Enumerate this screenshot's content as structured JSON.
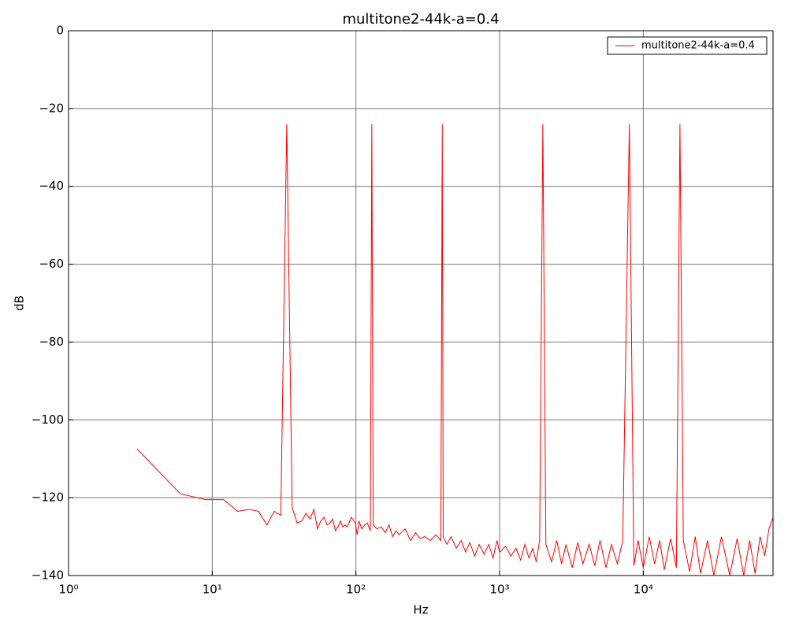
{
  "chart_data": {
    "type": "line",
    "title": "multitone2-44k-a=0.4",
    "x_label": "Hz",
    "y_label": "dB",
    "log_x": true,
    "grid": true,
    "legend": "upper right",
    "xlim": [
      1,
      80000
    ],
    "xticks": [
      {
        "value": 1,
        "label": "10⁰"
      },
      {
        "value": 10,
        "label": "10¹"
      },
      {
        "value": 100,
        "label": "10²"
      },
      {
        "value": 1000,
        "label": "10³"
      },
      {
        "value": 10000,
        "label": "10⁴"
      }
    ],
    "ylim": [
      -140,
      0
    ],
    "yticks": [
      {
        "value": -140,
        "label": "−140"
      },
      {
        "value": -120,
        "label": "−120"
      },
      {
        "value": -100,
        "label": "−100"
      },
      {
        "value": -80,
        "label": "−80"
      },
      {
        "value": -60,
        "label": "−60"
      },
      {
        "value": -40,
        "label": "−40"
      },
      {
        "value": -20,
        "label": "−20"
      },
      0
    ],
    "x": [
      3,
      6,
      9,
      12,
      15,
      18,
      21,
      24,
      27,
      30,
      33,
      36,
      39,
      42,
      45,
      48,
      51,
      54,
      57,
      60,
      63,
      66,
      69,
      72,
      75,
      78,
      81,
      84,
      87,
      93,
      99,
      102,
      105,
      110,
      115,
      120,
      126,
      129,
      132,
      140,
      150,
      160,
      170,
      180,
      190,
      200,
      220,
      240,
      260,
      280,
      300,
      330,
      360,
      390,
      399,
      405,
      430,
      460,
      500,
      540,
      580,
      620,
      670,
      720,
      780,
      840,
      900,
      960,
      1000,
      1100,
      1200,
      1300,
      1400,
      1500,
      1600,
      1700,
      1800,
      1900,
      2000,
      2100,
      2300,
      2500,
      2700,
      2900,
      3200,
      3500,
      3800,
      4200,
      4600,
      5000,
      5500,
      6000,
      6600,
      7200,
      8000,
      8600,
      9200,
      10000,
      11000,
      12000,
      13000,
      14000,
      15500,
      17000,
      18000,
      19000,
      21000,
      23000,
      25000,
      28000,
      31000,
      35000,
      40000,
      45000,
      50000,
      55000,
      60000,
      65000,
      70000,
      75000,
      80000
    ],
    "series": [
      {
        "name": "multitone2-44k-a=0.4",
        "color": "#ff0000",
        "values": [
          -107.5,
          -119,
          -120.5,
          -120.5,
          -123.5,
          -123,
          -123.5,
          -127,
          -123.5,
          -124.5,
          -24,
          -122.5,
          -126.5,
          -126,
          -124,
          -125.5,
          -123,
          -128,
          -126,
          -125,
          -127,
          -126.5,
          -125.5,
          -128.5,
          -127.5,
          -126,
          -127.5,
          -127,
          -127.5,
          -125,
          -126.5,
          -129.5,
          -126,
          -128,
          -127,
          -126.5,
          -128.5,
          -24,
          -127,
          -128,
          -127.5,
          -129,
          -127,
          -130,
          -128.5,
          -129.5,
          -128,
          -131,
          -129,
          -130.5,
          -130,
          -131,
          -129.5,
          -131,
          -24,
          -130,
          -132,
          -130,
          -133,
          -131,
          -134,
          -131.5,
          -135,
          -132,
          -134.5,
          -132,
          -135.5,
          -131,
          -134,
          -132.5,
          -135,
          -133,
          -136,
          -132,
          -135.5,
          -133,
          -136.5,
          -131,
          -24,
          -132,
          -136.5,
          -131,
          -137,
          -132,
          -138,
          -131.5,
          -137,
          -132,
          -137.5,
          -131,
          -138,
          -132,
          -137,
          -131,
          -24,
          -137.5,
          -131,
          -138,
          -130,
          -137,
          -131,
          -138.5,
          -130.5,
          -138,
          -24,
          -131,
          -139,
          -130,
          -139.5,
          -131,
          -140,
          -130,
          -140,
          -130.5,
          -140,
          -131,
          -139.5,
          -130,
          -135,
          -128,
          -125
        ]
      }
    ]
  }
}
